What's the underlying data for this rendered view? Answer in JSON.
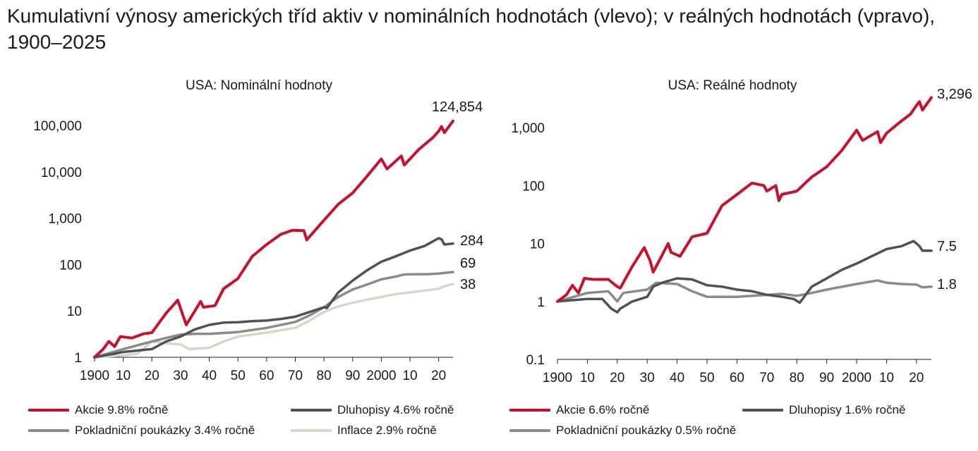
{
  "title": "Kumulativní výnosy amerických tříd aktiv v nominálních hodnotách (vlevo); v reálných hodnotách (vpravo), 1900–2025",
  "chart_data": [
    {
      "type": "line",
      "subtitle": "USA: Nominální hodnoty",
      "yscale": "log",
      "ylim": [
        1,
        150000
      ],
      "yticks": [
        1,
        10,
        100,
        1000,
        10000,
        100000
      ],
      "ytick_labels": [
        "1",
        "10",
        "100",
        "1,000",
        "10,000",
        "100,000"
      ],
      "xlim": [
        1900,
        2025
      ],
      "xticks": [
        1900,
        1910,
        1920,
        1930,
        1940,
        1950,
        1960,
        1970,
        1980,
        1990,
        2000,
        2010,
        2020
      ],
      "xtick_labels": [
        "1900",
        "10",
        "20",
        "30",
        "40",
        "50",
        "60",
        "70",
        "80",
        "90",
        "2000",
        "10",
        "20"
      ],
      "end_labels": [
        "124,854",
        "284",
        "69",
        "38"
      ],
      "series": [
        {
          "name": "Akcie 9.8% ročně",
          "color": "#c8102e",
          "x": [
            1900,
            1903,
            1905,
            1907,
            1909,
            1913,
            1917,
            1920,
            1925,
            1929,
            1932,
            1937,
            1938,
            1942,
            1945,
            1950,
            1955,
            1960,
            1965,
            1969,
            1973,
            1974,
            1980,
            1985,
            1990,
            1995,
            2000,
            2002,
            2007,
            2008,
            2013,
            2018,
            2020,
            2021,
            2022,
            2025
          ],
          "y": [
            1,
            1.5,
            2.2,
            1.7,
            2.8,
            2.6,
            3.2,
            3.4,
            9,
            17,
            5,
            16,
            12,
            13,
            30,
            50,
            150,
            270,
            450,
            550,
            540,
            340,
            900,
            2000,
            3500,
            8000,
            19000,
            11500,
            22000,
            14000,
            30000,
            55000,
            75000,
            95000,
            70000,
            124854
          ]
        },
        {
          "name": "Dluhopisy 4.6% ročně",
          "color": "#4d5258",
          "x": [
            1900,
            1910,
            1920,
            1925,
            1930,
            1935,
            1940,
            1945,
            1950,
            1955,
            1960,
            1965,
            1970,
            1975,
            1980,
            1981,
            1985,
            1990,
            1995,
            2000,
            2005,
            2010,
            2015,
            2020,
            2021,
            2022,
            2025
          ],
          "y": [
            1,
            1.3,
            1.5,
            2.2,
            2.8,
            4,
            5,
            5.6,
            5.7,
            6,
            6.2,
            6.7,
            7.5,
            9.5,
            12,
            11.5,
            25,
            45,
            75,
            115,
            150,
            200,
            250,
            370,
            350,
            270,
            284
          ]
        },
        {
          "name": "Pokladniční poukázky 3.4% ročně",
          "color": "#8c8c86",
          "x": [
            1900,
            1910,
            1920,
            1930,
            1935,
            1940,
            1950,
            1960,
            1970,
            1975,
            1980,
            1985,
            1990,
            1995,
            2000,
            2005,
            2008,
            2012,
            2016,
            2020,
            2025
          ],
          "y": [
            1,
            1.5,
            2.2,
            3.1,
            3.2,
            3.2,
            3.5,
            4.3,
            5.8,
            8,
            12,
            20,
            29,
            37,
            48,
            55,
            61,
            62,
            62,
            64,
            69
          ]
        },
        {
          "name": "Inflace 2.9% ročně",
          "color": "#d9d5cb",
          "x": [
            1900,
            1910,
            1915,
            1920,
            1925,
            1930,
            1933,
            1940,
            1945,
            1950,
            1960,
            1970,
            1975,
            1980,
            1985,
            1990,
            1995,
            2000,
            2005,
            2010,
            2015,
            2020,
            2022,
            2025
          ],
          "y": [
            1,
            1.1,
            1.2,
            2.2,
            2,
            1.9,
            1.5,
            1.6,
            2.2,
            2.8,
            3.4,
            4.3,
            6.2,
            9.5,
            12.5,
            15,
            17.5,
            20,
            23,
            25,
            27.5,
            30,
            34,
            38
          ]
        }
      ]
    },
    {
      "type": "line",
      "subtitle": "USA: Reálné hodnoty",
      "yscale": "log",
      "ylim": [
        0.1,
        4500
      ],
      "yticks": [
        0.1,
        1,
        10,
        100,
        1000
      ],
      "ytick_labels": [
        "0.1",
        "1",
        "10",
        "100",
        "1,000"
      ],
      "xlim": [
        1900,
        2025
      ],
      "xticks": [
        1900,
        1910,
        1920,
        1930,
        1940,
        1950,
        1960,
        1970,
        1980,
        1990,
        2000,
        2010,
        2020
      ],
      "xtick_labels": [
        "1900",
        "10",
        "20",
        "30",
        "40",
        "50",
        "60",
        "70",
        "80",
        "90",
        "2000",
        "10",
        "20"
      ],
      "end_labels": [
        "3,296",
        "7.5",
        "1.8"
      ],
      "series": [
        {
          "name": "Akcie 6.6% ročně",
          "color": "#c8102e",
          "x": [
            1900,
            1903,
            1905,
            1907,
            1909,
            1912,
            1917,
            1920,
            1921,
            1925,
            1929,
            1931,
            1932,
            1937,
            1938,
            1941,
            1945,
            1950,
            1955,
            1960,
            1965,
            1969,
            1970,
            1973,
            1974,
            1975,
            1980,
            1985,
            1990,
            1995,
            2000,
            2002,
            2007,
            2008,
            2010,
            2015,
            2018,
            2020,
            2021,
            2022,
            2025
          ],
          "y": [
            1,
            1.3,
            1.9,
            1.4,
            2.5,
            2.4,
            2.4,
            1.8,
            1.7,
            4,
            8.5,
            5,
            3.2,
            10,
            7,
            6,
            13,
            15,
            45,
            70,
            110,
            100,
            80,
            100,
            55,
            70,
            80,
            140,
            210,
            400,
            900,
            600,
            850,
            550,
            800,
            1300,
            1700,
            2400,
            2800,
            2000,
            3296
          ]
        },
        {
          "name": "Dluhopisy 1.6% ročně",
          "color": "#4d5258",
          "x": [
            1900,
            1910,
            1915,
            1918,
            1920,
            1921,
            1925,
            1930,
            1932,
            1935,
            1940,
            1945,
            1950,
            1955,
            1960,
            1965,
            1970,
            1975,
            1979,
            1981,
            1985,
            1990,
            1995,
            2000,
            2005,
            2010,
            2015,
            2019,
            2020,
            2021,
            2022,
            2025
          ],
          "y": [
            1,
            1.1,
            1.1,
            0.75,
            0.65,
            0.75,
            1,
            1.2,
            1.8,
            2.1,
            2.5,
            2.4,
            1.9,
            1.8,
            1.6,
            1.5,
            1.3,
            1.2,
            1.1,
            0.95,
            1.8,
            2.5,
            3.5,
            4.5,
            6,
            8,
            9,
            11,
            10,
            9,
            7.5,
            7.5
          ]
        },
        {
          "name": "Pokladniční poukázky 0.5% ročně",
          "color": "#8c8c86",
          "x": [
            1900,
            1910,
            1917,
            1920,
            1922,
            1930,
            1933,
            1940,
            1945,
            1950,
            1960,
            1970,
            1975,
            1980,
            1985,
            1990,
            2000,
            2007,
            2010,
            2015,
            2020,
            2022,
            2025
          ],
          "y": [
            1,
            1.4,
            1.5,
            1.0,
            1.4,
            1.6,
            2.1,
            2.0,
            1.5,
            1.2,
            1.2,
            1.3,
            1.35,
            1.25,
            1.4,
            1.6,
            2.0,
            2.3,
            2.1,
            2.0,
            1.95,
            1.75,
            1.8
          ]
        }
      ]
    }
  ]
}
